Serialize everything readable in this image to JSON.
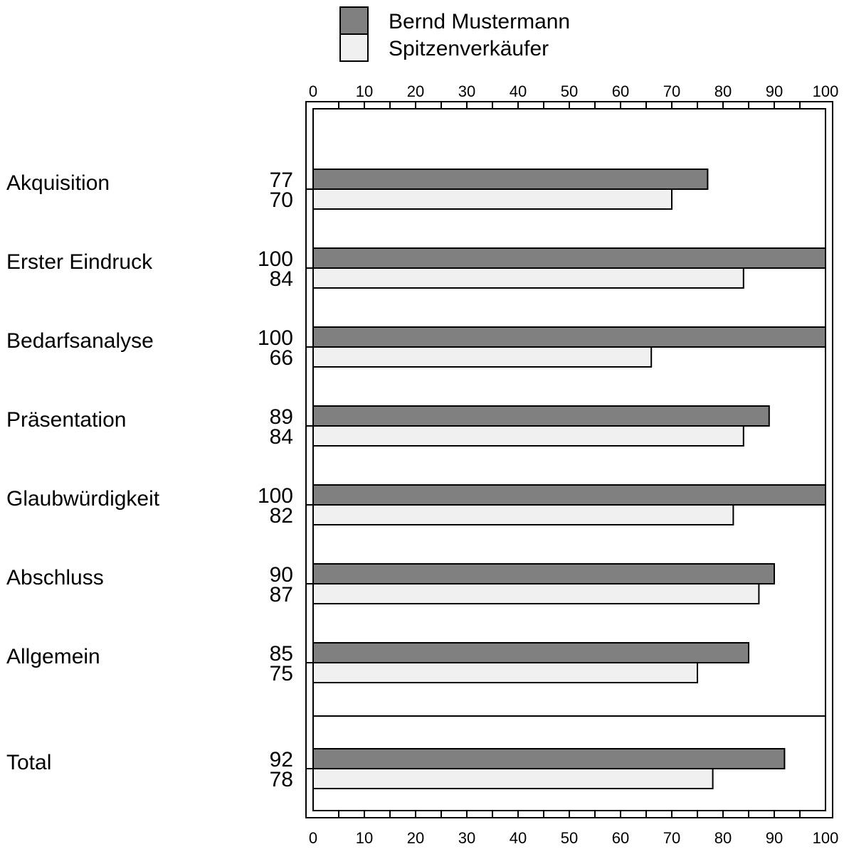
{
  "chart_data": {
    "type": "bar",
    "orientation": "horizontal",
    "categories": [
      "Akquisition",
      "Erster Eindruck",
      "Bedarfsanalyse",
      "Präsentation",
      "Glaubwürdigkeit",
      "Abschluss",
      "Allgemein",
      "Total"
    ],
    "series": [
      {
        "name": "Bernd Mustermann",
        "color": "#808080",
        "values": [
          77,
          100,
          100,
          89,
          100,
          90,
          85,
          92
        ]
      },
      {
        "name": "Spitzenverkäufer",
        "color": "#f0f0f0",
        "values": [
          70,
          84,
          66,
          84,
          82,
          87,
          75,
          78
        ]
      }
    ],
    "xlim": [
      0,
      100
    ],
    "xticks": [
      0,
      10,
      20,
      30,
      40,
      50,
      60,
      70,
      80,
      90,
      100
    ],
    "axis_position": "top-and-bottom",
    "legend_position": "top",
    "grid": false,
    "title": "",
    "xlabel": "",
    "ylabel": ""
  }
}
